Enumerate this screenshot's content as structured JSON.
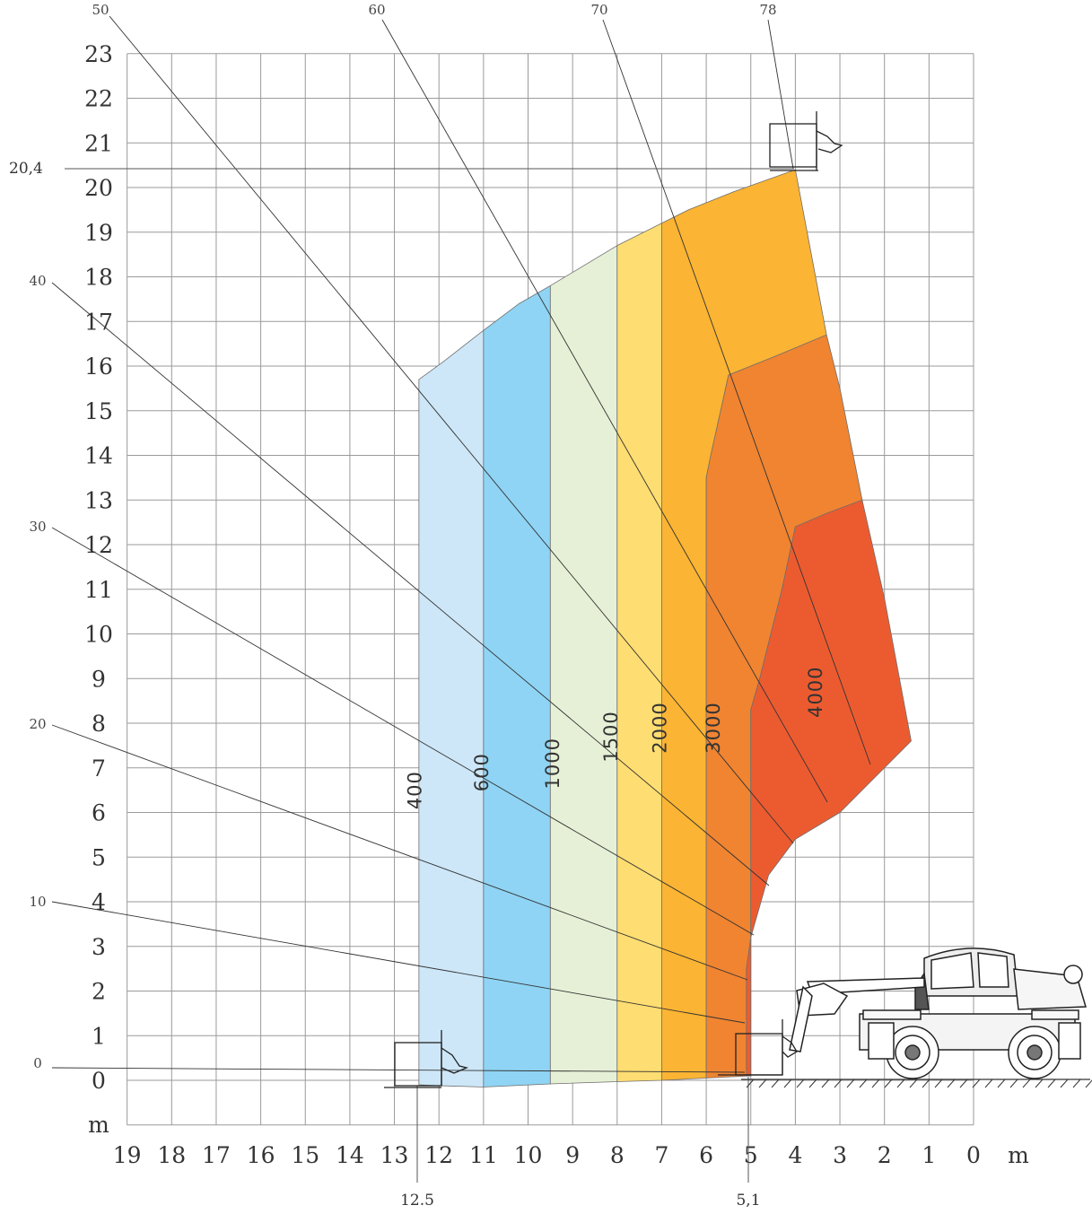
{
  "chart_data": {
    "type": "area",
    "xlabel": "m",
    "ylabel": "m",
    "x_ticks": [
      "19",
      "18",
      "17",
      "16",
      "15",
      "14",
      "13",
      "12",
      "11",
      "10",
      "9",
      "8",
      "7",
      "6",
      "5",
      "4",
      "3",
      "2",
      "1",
      "0"
    ],
    "y_ticks": [
      "0",
      "1",
      "2",
      "3",
      "4",
      "5",
      "6",
      "7",
      "8",
      "9",
      "10",
      "11",
      "12",
      "13",
      "14",
      "15",
      "16",
      "17",
      "18",
      "19",
      "20",
      "21",
      "22",
      "23"
    ],
    "xlim": [
      19,
      0
    ],
    "ylim": [
      -1,
      23
    ],
    "x_reversed": true,
    "grid": true,
    "max_height_label": "20,4",
    "max_height": 20.4,
    "max_reach_label": "12.5",
    "max_reach": 12.5,
    "ground_reach_label": "5,1",
    "ground_reach": 5.1,
    "load_zones": [
      {
        "label": "400",
        "color": "#cde7f8"
      },
      {
        "label": "600",
        "color": "#8fd4f4"
      },
      {
        "label": "1000",
        "color": "#e6f0d6"
      },
      {
        "label": "1500",
        "color": "#fedd72"
      },
      {
        "label": "2000",
        "color": "#fbb433"
      },
      {
        "label": "3000",
        "color": "#f08431"
      },
      {
        "label": "4000",
        "color": "#ec5b30"
      }
    ],
    "boom_angles": [
      {
        "label": "0"
      },
      {
        "label": "10"
      },
      {
        "label": "20"
      },
      {
        "label": "30"
      },
      {
        "label": "40"
      },
      {
        "label": "50"
      },
      {
        "label": "60"
      },
      {
        "label": "70"
      },
      {
        "label": "78"
      }
    ]
  }
}
